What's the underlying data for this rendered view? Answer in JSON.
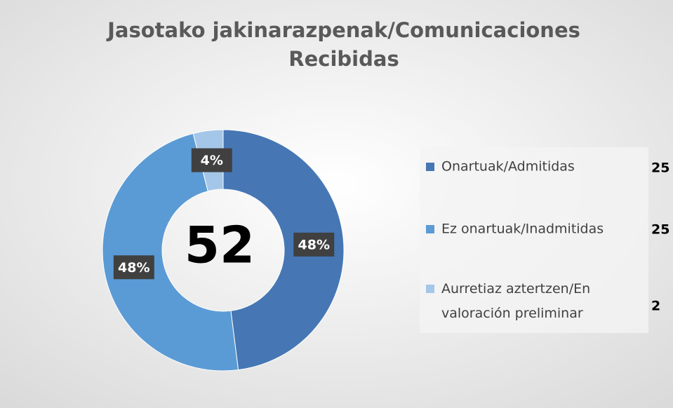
{
  "chart_data": {
    "type": "donut",
    "title": [
      "Jasotako jakinarazpenak/Comunicaciones",
      "Recibidas"
    ],
    "categories": [
      "Onartuak/Admitidas",
      "Ez onartuak/Inadmitidas",
      "Aurretiaz aztertzen/En valoración preliminar"
    ],
    "values": [
      48,
      48,
      4
    ],
    "value_labels": [
      "48%",
      "48%",
      "4%"
    ],
    "counts": [
      25,
      25,
      2
    ],
    "total": 52,
    "colors": [
      "#4677b4",
      "#5b9bd5",
      "#a4c6e8"
    ]
  }
}
